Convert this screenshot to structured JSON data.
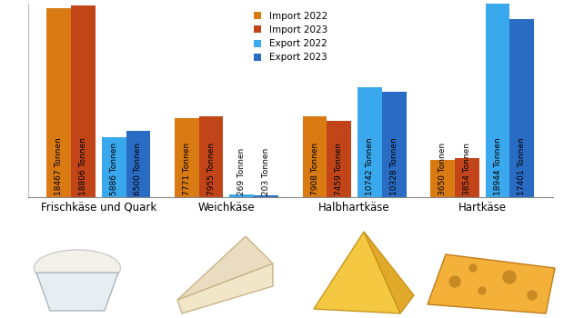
{
  "chart_data": {
    "type": "bar",
    "categories": [
      "Frischkäse und Quark",
      "Weichkäse",
      "Halbhartkäse",
      "Hartkäse"
    ],
    "series": [
      {
        "name": "Import 2022",
        "color": "#d97a12",
        "values": [
          18467,
          7771,
          7908,
          3650
        ],
        "value_labels": [
          "18467 Tonnen",
          "7771 Tonnen",
          "7908 Tonnen",
          "3650 Tonnen"
        ]
      },
      {
        "name": "Import 2023",
        "color": "#c2451a",
        "values": [
          18806,
          7955,
          7459,
          3854
        ],
        "value_labels": [
          "18806 Tonnen",
          "7955 Tonnen",
          "7459 Tonnen",
          "3854 Tonnen"
        ]
      },
      {
        "name": "Export 2022",
        "color": "#3aa8ec",
        "values": [
          5886,
          269,
          10742,
          18944
        ],
        "value_labels": [
          "5886 Tonnen",
          "269 Tonnen",
          "10742 Tonnen",
          "18944 Tonnen"
        ]
      },
      {
        "name": "Export 2023",
        "color": "#2a6cc4",
        "values": [
          6500,
          203,
          10328,
          17401
        ],
        "value_labels": [
          "6500 Tonnen",
          "203 Tonnen",
          "10328 Tonnen",
          "17401 Tonnen"
        ]
      }
    ],
    "ylim": [
      0,
      19000
    ],
    "data_labels": true,
    "legend": "upper center",
    "tick_labels": "x",
    "grid": false
  }
}
